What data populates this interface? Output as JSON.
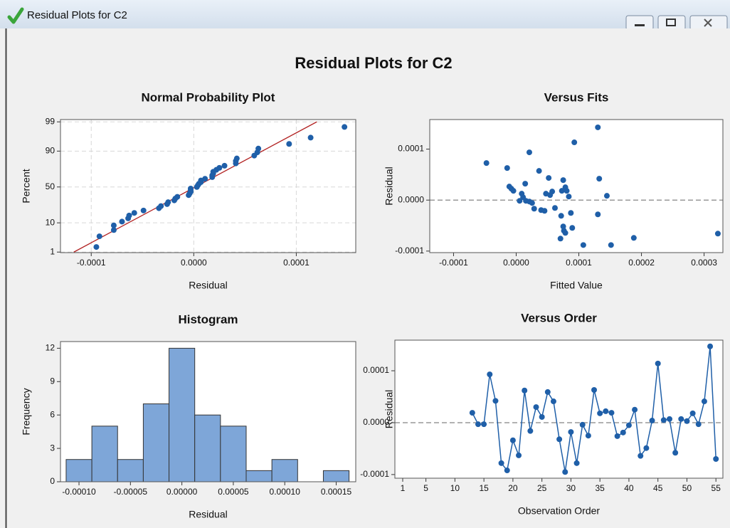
{
  "window": {
    "title": "Residual Plots for C2"
  },
  "figure_title": "Residual Plots for C2",
  "chart_data": [
    {
      "type": "probability",
      "title": "Normal Probability Plot",
      "xlabel": "Residual",
      "ylabel": "Percent",
      "color": "#1f5fa8",
      "grid": true,
      "x": [
        -9.5e-05,
        -9.2e-05,
        -7.8e-05,
        -7.8e-05,
        -7e-05,
        -6.4e-05,
        -6.3e-05,
        -5.8e-05,
        -4.9e-05,
        -3.4e-05,
        -3.2e-05,
        -2.6e-05,
        -2.5e-05,
        -1.9e-05,
        -1.8e-05,
        -1.6e-05,
        -5e-06,
        -4e-06,
        -3e-06,
        -3e-06,
        -3e-06,
        3e-06,
        4e-06,
        5e-06,
        7e-06,
        7e-06,
        1.1e-05,
        1.8e-05,
        1.8e-05,
        1.9e-05,
        1.9e-05,
        2.2e-05,
        2.5e-05,
        3e-05,
        4.1e-05,
        4.1e-05,
        4.2e-05,
        5.9e-05,
        6.2e-05,
        6.3e-05,
        9.3e-05,
        0.000114,
        0.000147
      ],
      "values": [
        1.6,
        3.9,
        6.2,
        8.5,
        10.8,
        13.1,
        15.4,
        17.7,
        20.0,
        22.4,
        24.7,
        27.0,
        29.3,
        31.6,
        33.9,
        36.2,
        38.5,
        40.8,
        43.1,
        45.4,
        47.7,
        50.0,
        52.3,
        54.6,
        56.9,
        59.2,
        61.5,
        63.8,
        66.1,
        68.4,
        70.7,
        73.0,
        75.3,
        77.6,
        80.0,
        82.3,
        84.6,
        86.9,
        89.2,
        91.5,
        93.8,
        96.1,
        98.4
      ],
      "fit_line": {
        "color": "#b22222",
        "x": [
          -0.000117,
          0.00012
        ],
        "values": [
          1,
          99
        ]
      },
      "xlim": [
        -0.00013,
        0.000158
      ],
      "ylim": [
        0.95,
        99.2
      ],
      "xticks": [
        {
          "value": -0.0001,
          "label": "-0.0001"
        },
        {
          "value": 0,
          "label": "0.0000"
        },
        {
          "value": 0.0001,
          "label": "0.0001"
        }
      ],
      "yticks": [
        1,
        10,
        50,
        90,
        99
      ]
    },
    {
      "type": "scatter",
      "title": "Versus Fits",
      "xlabel": "Fitted Value",
      "ylabel": "Residual",
      "color": "#1f5fa8",
      "ref_line": 0,
      "x": [
        -4.75e-05,
        -1.44e-05,
        -1.1e-05,
        -7.7e-06,
        -4.4e-06,
        2.1e-05,
        3.65e-05,
        1.44e-05,
        8.8e-06,
        1.1e-05,
        5.5e-06,
        1.55e-05,
        2.1e-05,
        2.54e-05,
        2.87e-05,
        3.98e-05,
        4.53e-05,
        4.75e-05,
        5.19e-05,
        5.41e-05,
        5.75e-05,
        6.19e-05,
        7.29e-05,
        7.51e-05,
        7.85e-05,
        8.07e-05,
        8.4e-05,
        8.73e-05,
        7.18e-05,
        7.51e-05,
        7.62e-05,
        7.07e-05,
        7.85e-05,
        8.95e-05,
        9.28e-05,
        0.0001304,
        0.0001072,
        0.0001304,
        0.0001326,
        0.0001448,
        0.0001514,
        0.0001878,
        0.000322
      ],
      "values": [
        7.27e-05,
        6.29e-05,
        2.66e-05,
        2.24e-05,
        1.82e-05,
        9.37e-05,
        5.73e-05,
        3.22e-05,
        1.26e-05,
        5.6e-06,
        -1.4e-06,
        -1.4e-06,
        -2.8e-06,
        -5.6e-06,
        -1.68e-05,
        -1.96e-05,
        -2.1e-05,
        1.26e-05,
        4.34e-05,
        9.8e-06,
        1.68e-05,
        -1.54e-05,
        1.82e-05,
        3.92e-05,
        2.52e-05,
        1.82e-05,
        7e-06,
        -2.52e-05,
        -3.08e-05,
        -5.17e-05,
        -6.01e-05,
        -7.55e-05,
        -6.43e-05,
        -5.45e-05,
        0.0001133,
        -2.8e-05,
        -8.81e-05,
        0.0001427,
        4.2e-05,
        8.4e-06,
        -8.81e-05,
        -7.41e-05,
        -6.57e-05
      ],
      "xlim": [
        -0.000138,
        0.00033
      ],
      "ylim": [
        -0.000103,
        0.000158
      ],
      "xticks": [
        {
          "value": -0.0001,
          "label": "-0.0001"
        },
        {
          "value": 0,
          "label": "0.0000"
        },
        {
          "value": 0.0001,
          "label": "0.0001"
        },
        {
          "value": 0.0002,
          "label": "0.0002"
        },
        {
          "value": 0.0003,
          "label": "0.0003"
        }
      ],
      "yticks": [
        {
          "value": -0.0001,
          "label": "-0.0001"
        },
        {
          "value": 0,
          "label": "0.0000"
        },
        {
          "value": 0.0001,
          "label": "0.0001"
        }
      ]
    },
    {
      "type": "histogram",
      "title": "Histogram",
      "xlabel": "Residual",
      "ylabel": "Frequency",
      "color": "#7ea6d8",
      "bins": [
        -0.0001125,
        -8.75e-05,
        -6.25e-05,
        -3.75e-05,
        -1.25e-05,
        1.25e-05,
        3.75e-05,
        6.25e-05,
        8.75e-05,
        0.0001125,
        0.0001375,
        0.0001625
      ],
      "values": [
        2,
        5,
        2,
        7,
        12,
        6,
        5,
        1,
        2,
        0,
        1
      ],
      "xlim": [
        -0.000118,
        0.000169
      ],
      "ylim": [
        0,
        12.6
      ],
      "xticks": [
        {
          "value": -0.0001,
          "label": "-0.00010"
        },
        {
          "value": -5e-05,
          "label": "-0.00005"
        },
        {
          "value": 0,
          "label": "0.00000"
        },
        {
          "value": 5e-05,
          "label": "0.00005"
        },
        {
          "value": 0.0001,
          "label": "0.00010"
        },
        {
          "value": 0.00015,
          "label": "0.00015"
        }
      ],
      "yticks": [
        0,
        3,
        6,
        9,
        12
      ]
    },
    {
      "type": "line",
      "title": "Versus Order",
      "xlabel": "Observation Order",
      "ylabel": "Residual",
      "color": "#1f5fa8",
      "ref_line": 0,
      "x": [
        13,
        14,
        15,
        16,
        17,
        18,
        19,
        20,
        21,
        22,
        23,
        24,
        25,
        26,
        27,
        28,
        29,
        30,
        31,
        32,
        33,
        34,
        35,
        36,
        37,
        38,
        39,
        40,
        41,
        42,
        43,
        44,
        45,
        46,
        47,
        48,
        49,
        50,
        51,
        52,
        53,
        54,
        55
      ],
      "values": [
        1.9e-05,
        -3e-06,
        -3e-06,
        9.3e-05,
        4.2e-05,
        -7.8e-05,
        -9.2e-05,
        -3.4e-05,
        -6.3e-05,
        6.2e-05,
        -1.6e-05,
        3e-05,
        1.1e-05,
        5.9e-05,
        4.1e-05,
        -3.2e-05,
        -9.5e-05,
        -1.8e-05,
        -7.8e-05,
        -4e-06,
        -2.5e-05,
        6.3e-05,
        1.8e-05,
        2.2e-05,
        1.9e-05,
        -2.6e-05,
        -1.9e-05,
        -5e-06,
        2.5e-05,
        -6.4e-05,
        -4.9e-05,
        4e-06,
        0.000114,
        5e-06,
        7e-06,
        -5.8e-05,
        7e-06,
        3e-06,
        1.8e-05,
        -3e-06,
        4.1e-05,
        0.000147,
        -7e-05
      ],
      "xlim": [
        -0.35,
        56.2
      ],
      "ylim": [
        -0.000107,
        0.000159
      ],
      "xticks": [
        1,
        5,
        10,
        15,
        20,
        25,
        30,
        35,
        40,
        45,
        50,
        55
      ],
      "yticks": [
        {
          "value": -0.0001,
          "label": "-0.0001"
        },
        {
          "value": 0,
          "label": "0.0000"
        },
        {
          "value": 0.0001,
          "label": "0.0001"
        }
      ]
    }
  ]
}
